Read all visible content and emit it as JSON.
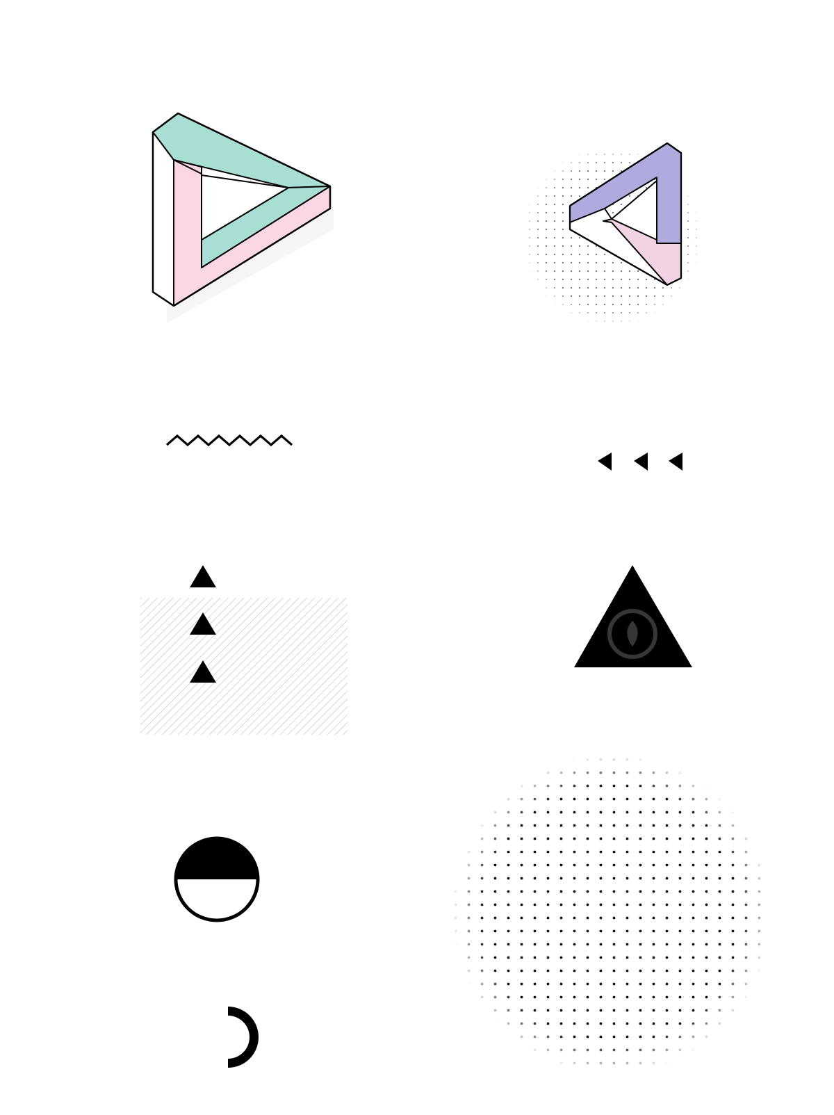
{
  "palette": {
    "background": "#ffffff",
    "ink": "#000000",
    "mint": "#a8ded3",
    "pink": "#fbd7e3",
    "lavender": "#b0abdf",
    "light_pink": "#f1d3e3",
    "hatch_gray": "#bdbdbd",
    "dot_gray": "#555555",
    "watermark": "#9a9a9a"
  },
  "elements": [
    "impossible-triangle-mint-pink",
    "impossible-triangle-lavender-pink",
    "dotted-circle-small",
    "zigzag-line",
    "left-arrow-triangles",
    "hatched-rectangle",
    "stacked-small-triangles",
    "solid-triangle",
    "half-filled-circle",
    "half-ring-arc",
    "dotted-circle-large"
  ],
  "counts": {
    "left_arrow_triangles": 3,
    "stacked_small_triangles": 3,
    "zigzag_peaks": 6
  }
}
